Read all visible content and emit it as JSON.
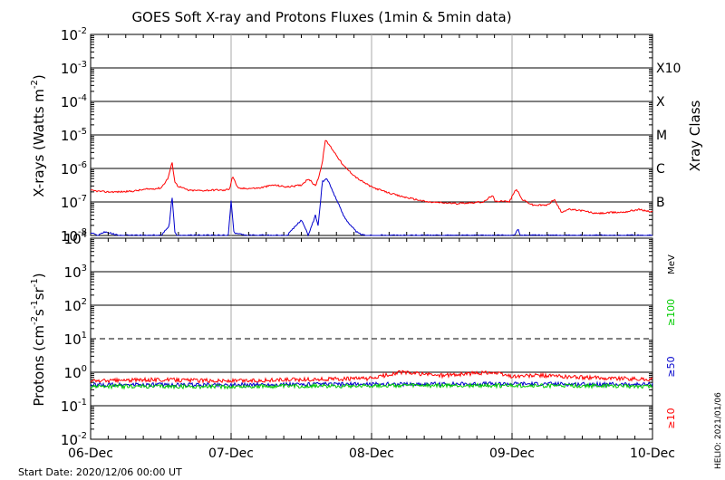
{
  "chart_data": [
    {
      "type": "line",
      "panel": "xrays",
      "title": "GOES Soft X-ray and Protons Fluxes   (1min & 5min data)",
      "ylabel": "X-rays (Watts m-2)",
      "yscale": "log",
      "ylim": [
        1e-08,
        0.01
      ],
      "y_ticks": [
        {
          "label": "10",
          "exp": "-2"
        },
        {
          "label": "10",
          "exp": "-3"
        },
        {
          "label": "10",
          "exp": "-4"
        },
        {
          "label": "10",
          "exp": "-5"
        },
        {
          "label": "10",
          "exp": "-6"
        },
        {
          "label": "10",
          "exp": "-7"
        },
        {
          "label": "10",
          "exp": "-8"
        }
      ],
      "right_axis_label": "Xray Class",
      "class_labels": [
        {
          "label": "X10",
          "value": 0.001
        },
        {
          "label": "X",
          "value": 0.0001
        },
        {
          "label": "M",
          "value": 1e-05
        },
        {
          "label": "C",
          "value": 1e-06
        },
        {
          "label": "B",
          "value": 1e-07
        }
      ],
      "x_unit": "days since 2020-12-06 00:00 UT",
      "series": [
        {
          "color": "#ff0000",
          "x": [
            0,
            0.1,
            0.2,
            0.3,
            0.4,
            0.5,
            0.55,
            0.58,
            0.6,
            0.62,
            0.7,
            0.8,
            0.9,
            0.95,
            0.99,
            1.01,
            1.05,
            1.2,
            1.3,
            1.4,
            1.5,
            1.55,
            1.6,
            1.62,
            1.65,
            1.67,
            1.7,
            1.75,
            1.8,
            1.9,
            2.0,
            2.1,
            2.2,
            2.4,
            2.6,
            2.8,
            2.86,
            2.88,
            2.92,
            2.98,
            3.03,
            3.07,
            3.15,
            3.25,
            3.3,
            3.35,
            3.4,
            3.5,
            3.6,
            3.7,
            3.8,
            3.9,
            4.0
          ],
          "y": [
            2.2e-07,
            2e-07,
            2e-07,
            2.1e-07,
            2.4e-07,
            2.6e-07,
            5e-07,
            1.5e-06,
            4e-07,
            3e-07,
            2.2e-07,
            2.2e-07,
            2.3e-07,
            2.2e-07,
            2.5e-07,
            6e-07,
            2.5e-07,
            2.6e-07,
            3.2e-07,
            2.8e-07,
            3.2e-07,
            5e-07,
            3e-07,
            5e-07,
            1.5e-06,
            7e-06,
            5e-06,
            2.5e-06,
            1.2e-06,
            5e-07,
            2.8e-07,
            2e-07,
            1.5e-07,
            1e-07,
            9e-08,
            1e-07,
            1.6e-07,
            1e-07,
            1.1e-07,
            1e-07,
            2.5e-07,
            1.2e-07,
            8e-08,
            8e-08,
            1.2e-07,
            5e-08,
            6e-08,
            5.5e-08,
            4.5e-08,
            4.8e-08,
            5e-08,
            6e-08,
            5e-08
          ]
        },
        {
          "color": "#0000cc",
          "x": [
            0,
            0.05,
            0.1,
            0.2,
            0.3,
            0.5,
            0.56,
            0.58,
            0.6,
            0.62,
            0.9,
            0.98,
            1.0,
            1.02,
            1.1,
            1.4,
            1.5,
            1.55,
            1.6,
            1.62,
            1.65,
            1.68,
            1.7,
            1.75,
            1.8,
            1.85,
            1.9,
            1.95,
            2.0,
            2.9,
            3.02,
            3.04,
            3.06
          ],
          "y": [
            1.2e-08,
            1e-08,
            1.3e-08,
            1e-08,
            1e-08,
            1e-08,
            2e-08,
            1.5e-07,
            1.2e-08,
            1e-08,
            1e-08,
            1e-08,
            1.1e-07,
            1.2e-08,
            1e-08,
            1e-08,
            3e-08,
            1e-08,
            4e-08,
            2e-08,
            4e-07,
            5e-07,
            3.5e-07,
            1.2e-07,
            4e-08,
            2e-08,
            1.2e-08,
            1e-08,
            1e-08,
            1e-08,
            1e-08,
            1.6e-08,
            1e-08
          ]
        }
      ]
    },
    {
      "type": "line",
      "panel": "protons",
      "ylabel": "Protons (cm-2s-1sr-1)",
      "yscale": "log",
      "ylim": [
        0.01,
        10000
      ],
      "y_ticks": [
        {
          "label": "10",
          "exp": "4"
        },
        {
          "label": "10",
          "exp": "3"
        },
        {
          "label": "10",
          "exp": "2"
        },
        {
          "label": "10",
          "exp": "1"
        },
        {
          "label": "10",
          "exp": "0"
        },
        {
          "label": "10",
          "exp": "-1"
        },
        {
          "label": "10",
          "exp": "-2"
        }
      ],
      "dashed_threshold": 10,
      "unit_label": "MeV",
      "legend": [
        {
          "name": "≥100",
          "color": "#00cc00"
        },
        {
          "name": "≥50",
          "color": "#0000cc"
        },
        {
          "name": "≥10",
          "color": "#ff0000"
        }
      ],
      "x_unit": "days since 2020-12-06 00:00 UT",
      "series": [
        {
          "name": "≥10",
          "color": "#ff0000",
          "x": [
            0,
            0.5,
            1.0,
            1.5,
            2.0,
            2.2,
            2.5,
            2.7,
            2.85,
            3.0,
            3.2,
            3.5,
            3.8,
            4.0
          ],
          "y": [
            0.55,
            0.6,
            0.55,
            0.6,
            0.65,
            1.0,
            0.8,
            0.9,
            1.0,
            0.75,
            0.8,
            0.7,
            0.65,
            0.6
          ]
        },
        {
          "name": "≥50",
          "color": "#0000cc",
          "x": [
            0,
            1.0,
            2.0,
            3.0,
            4.0
          ],
          "y": [
            0.42,
            0.42,
            0.44,
            0.45,
            0.43
          ]
        },
        {
          "name": "≥100",
          "color": "#00cc00",
          "x": [
            0,
            1.0,
            2.0,
            3.0,
            4.0
          ],
          "y": [
            0.38,
            0.37,
            0.4,
            0.4,
            0.38
          ]
        }
      ]
    }
  ],
  "x_tick_labels": [
    "06-Dec",
    "07-Dec",
    "08-Dec",
    "09-Dec",
    "10-Dec"
  ],
  "footer": {
    "start_date": "Start Date: 2020/12/06 00:00 UT",
    "credit": "HELIO: 2021/01/06"
  },
  "colors": {
    "grid": "#aaaaaa",
    "axis": "#000000"
  }
}
